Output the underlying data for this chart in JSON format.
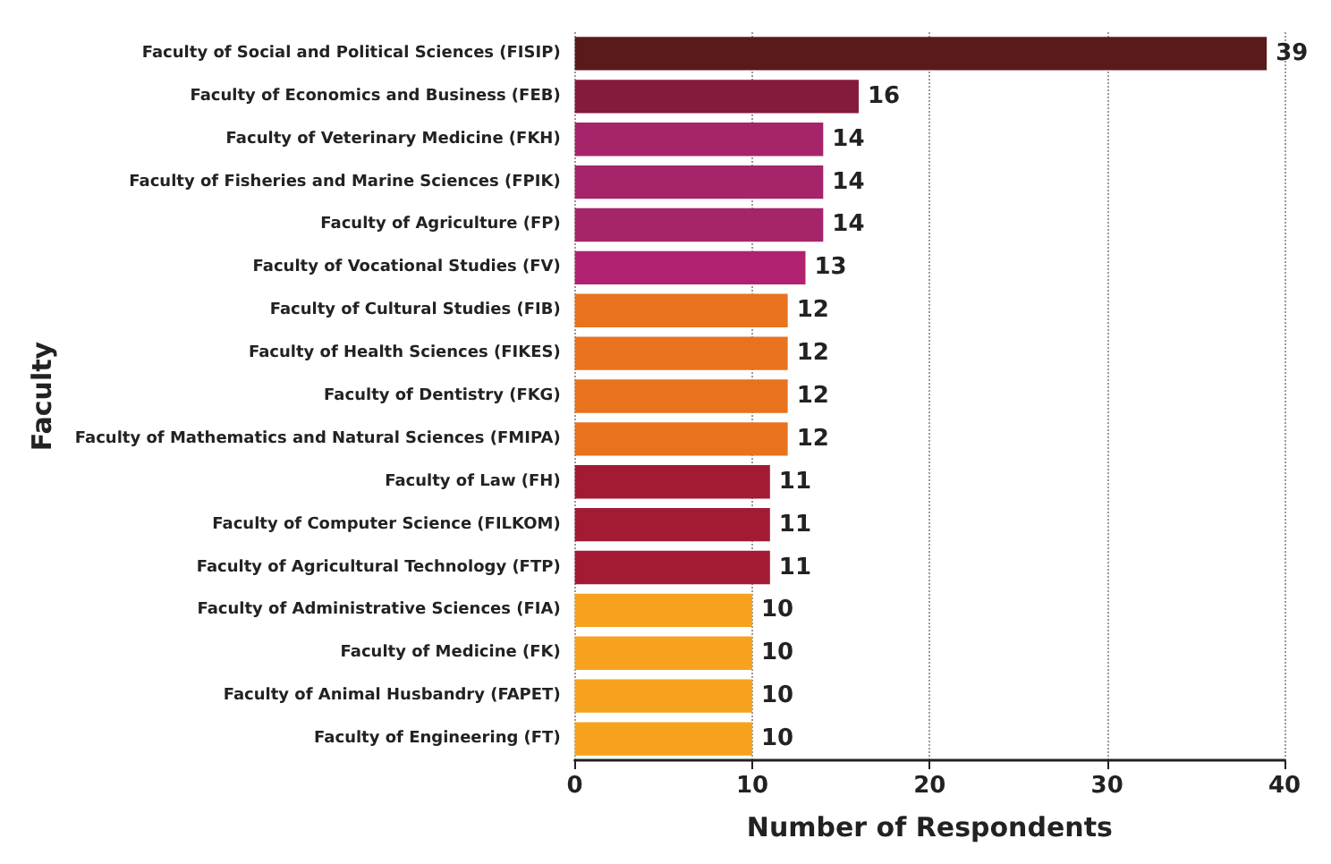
{
  "chart_data": {
    "type": "bar",
    "orientation": "horizontal",
    "xlabel": "Number of Respondents",
    "ylabel": "Faculty",
    "categories": [
      "Faculty of Social and Political Sciences (FISIP)",
      "Faculty of Economics and Business (FEB)",
      "Faculty of Veterinary Medicine (FKH)",
      "Faculty of Fisheries and Marine Sciences (FPIK)",
      "Faculty of Agriculture (FP)",
      "Faculty of Vocational Studies (FV)",
      "Faculty of Cultural Studies (FIB)",
      "Faculty of Health Sciences (FIKES)",
      "Faculty of Dentistry (FKG)",
      "Faculty of Mathematics and Natural Sciences (FMIPA)",
      "Faculty of Law (FH)",
      "Faculty of Computer Science (FILKOM)",
      "Faculty of Agricultural Technology (FTP)",
      "Faculty of Administrative Sciences (FIA)",
      "Faculty of Medicine (FK)",
      "Faculty of Animal Husbandry (FAPET)",
      "Faculty of Engineering (FT)"
    ],
    "values": [
      39,
      16,
      14,
      14,
      14,
      13,
      12,
      12,
      12,
      12,
      11,
      11,
      11,
      10,
      10,
      10,
      10
    ],
    "colors": [
      "#5a1a1c",
      "#841a3c",
      "#a5246a",
      "#a5246a",
      "#a5246a",
      "#b0226f",
      "#e8721e",
      "#e8721e",
      "#e8721e",
      "#e8721e",
      "#a31b33",
      "#a31b33",
      "#a31b33",
      "#f7a21f",
      "#f7a21f",
      "#f7a21f",
      "#f7a21f"
    ],
    "xlim": [
      0,
      40
    ],
    "xticks": [
      0,
      10,
      20,
      30,
      40
    ],
    "grid": "x",
    "data_labels": true
  }
}
